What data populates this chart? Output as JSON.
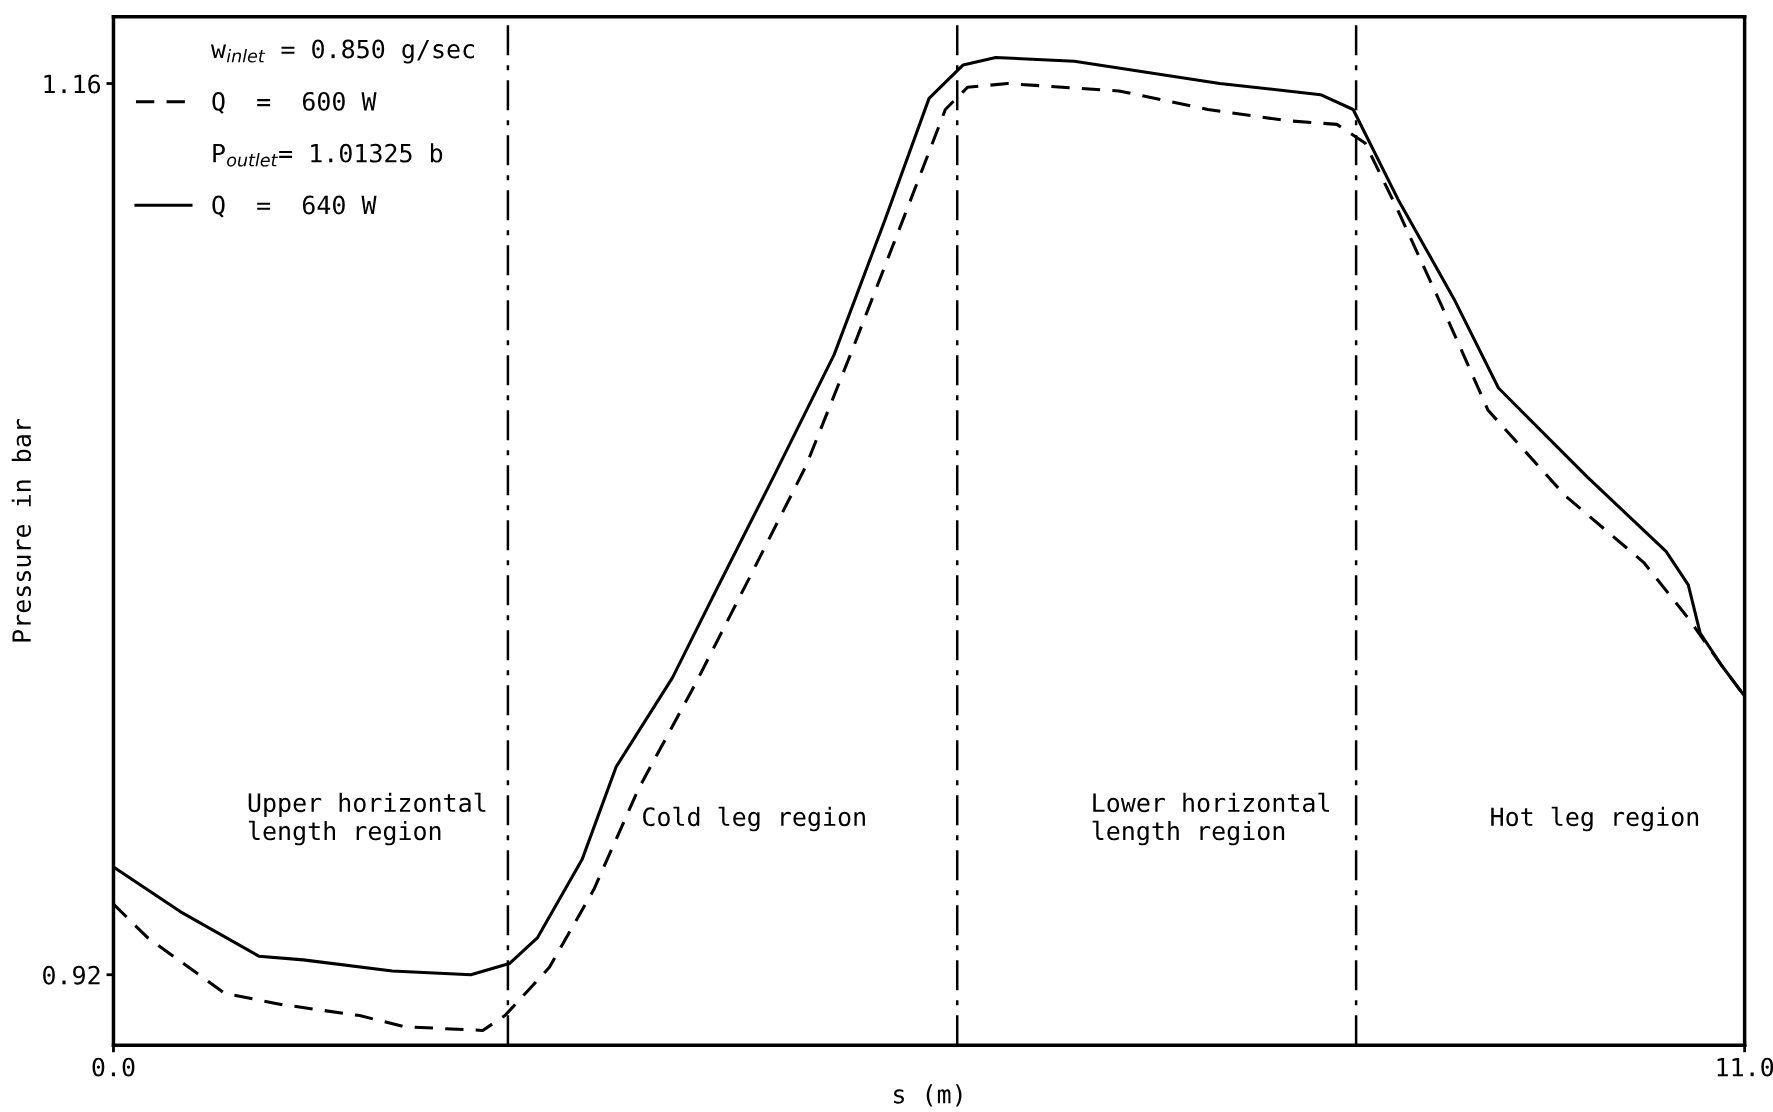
{
  "chart_data": {
    "type": "line",
    "xlabel": "s (m)",
    "ylabel": "Pressure in bar",
    "xlim": [
      0,
      11
    ],
    "ylim": [
      0.901,
      1.178
    ],
    "xticks": [
      {
        "value": 0,
        "label": "0.0"
      },
      {
        "value": 11,
        "label": "11.0"
      }
    ],
    "yticks": [
      0.92,
      1.16
    ],
    "grid": false,
    "legend": "top left",
    "marker": "none",
    "series": [
      {
        "name": "Q  =  600 W",
        "color": "#000000",
        "line_style": "dashed",
        "x": [
          0,
          0.23,
          0.75,
          1.13,
          1.66,
          1.96,
          2.49,
          2.64,
          2.94,
          3.24,
          3.54,
          3.92,
          4.29,
          4.67,
          4.97,
          5.35,
          5.61,
          5.76,
          6.03,
          6.78,
          7.38,
          7.91,
          8.25,
          8.44,
          8.66,
          8.97,
          9.27,
          9.79,
          10.32,
          10.62,
          10.85,
          11.0
        ],
        "values": [
          0.939,
          0.93,
          0.915,
          0.912,
          0.909,
          0.906,
          0.905,
          0.909,
          0.922,
          0.943,
          0.97,
          0.998,
          1.027,
          1.057,
          1.087,
          1.126,
          1.153,
          1.159,
          1.16,
          1.158,
          1.153,
          1.15,
          1.149,
          1.144,
          1.126,
          1.099,
          1.072,
          1.049,
          1.031,
          1.016,
          1.003,
          0.995
        ]
      },
      {
        "name": "Q  =  640 W",
        "color": "#000000",
        "line_style": "solid",
        "x": [
          0,
          0.45,
          0.98,
          1.28,
          1.88,
          2.41,
          2.67,
          2.86,
          3.16,
          3.39,
          3.77,
          4.07,
          4.45,
          4.86,
          5.2,
          5.5,
          5.73,
          5.95,
          6.48,
          7.46,
          8.14,
          8.36,
          8.66,
          9.04,
          9.34,
          9.94,
          10.47,
          10.62,
          10.7,
          10.85,
          11.0
        ],
        "values": [
          0.949,
          0.937,
          0.925,
          0.924,
          0.921,
          0.92,
          0.923,
          0.93,
          0.951,
          0.976,
          1.0,
          1.024,
          1.054,
          1.087,
          1.123,
          1.156,
          1.165,
          1.167,
          1.166,
          1.16,
          1.157,
          1.153,
          1.129,
          1.102,
          1.078,
          1.054,
          1.034,
          1.025,
          1.012,
          1.003,
          0.995
        ]
      }
    ],
    "ref_lines": [
      {
        "axis": "x",
        "value": 2.66,
        "color": "#000000",
        "line_style": "dashdot"
      },
      {
        "axis": "x",
        "value": 5.69,
        "color": "#000000",
        "line_style": "dashdot"
      },
      {
        "axis": "x",
        "value": 8.38,
        "color": "#000000",
        "line_style": "dashdot"
      }
    ],
    "annotations": [
      "w$_{inlet}$ = 0.850 g/sec",
      "P$_{outlet}$= 1.01325 b",
      "Upper horizontal\nlength region",
      "Cold leg region",
      "Lower horizontal\nlength region",
      "Hot leg region"
    ]
  }
}
